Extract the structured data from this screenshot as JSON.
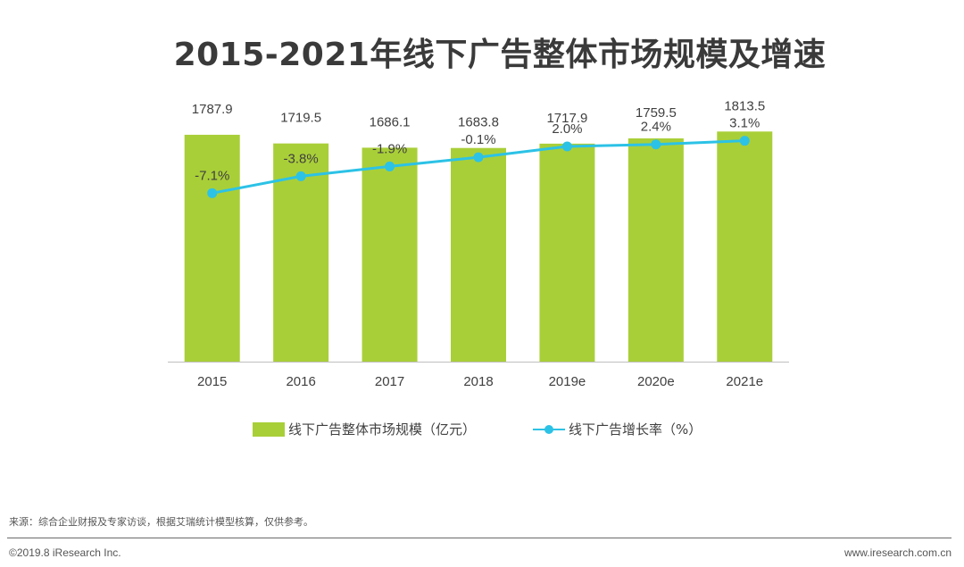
{
  "title": "2015-2021年线下广告整体市场规模及增速",
  "chart_data": {
    "type": "bar",
    "title": "2015-2021年线下广告整体市场规模及增速",
    "categories": [
      "2015",
      "2016",
      "2017",
      "2018",
      "2019e",
      "2020e",
      "2021e"
    ],
    "series": [
      {
        "name": "线下广告整体市场规模（亿元）",
        "type": "bar",
        "values": [
          1787.9,
          1719.5,
          1686.1,
          1683.8,
          1717.9,
          1759.5,
          1813.5
        ],
        "labels": [
          "1787.9",
          "1719.5",
          "1686.1",
          "1683.8",
          "1717.9",
          "1759.5",
          "1813.5"
        ],
        "color": "#a9cf38"
      },
      {
        "name": "线下广告增长率（%）",
        "type": "line",
        "values": [
          -7.1,
          -3.8,
          -1.9,
          -0.1,
          2.0,
          2.4,
          3.1
        ],
        "labels": [
          "-7.1%",
          "-3.8%",
          "-1.9%",
          "-0.1%",
          "2.0%",
          "2.4%",
          "3.1%"
        ],
        "color": "#2cc2e6"
      }
    ],
    "bar_axis_range": [
      0,
      1900
    ],
    "line_axis_range": [
      -10,
      10
    ],
    "grid": false,
    "legend_position": "bottom"
  },
  "legend": {
    "bar_label": "线下广告整体市场规模（亿元）",
    "line_label": "线下广告增长率（%）"
  },
  "footer": {
    "source": "来源：综合企业财报及专家访谈，根据艾瑞统计模型核算，仅供参考。",
    "copyright": "©2019.8 iResearch Inc.",
    "website": "www.iresearch.com.cn"
  }
}
